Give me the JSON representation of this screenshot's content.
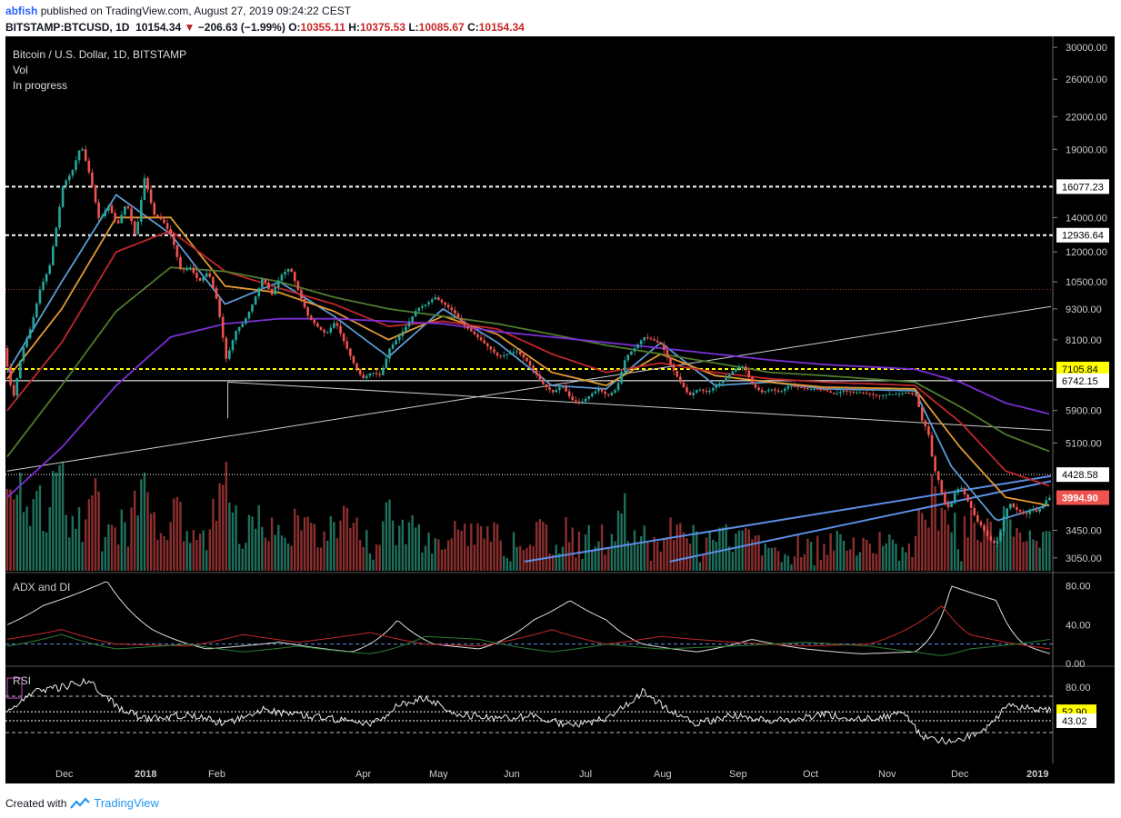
{
  "header": {
    "publisher": "abfish",
    "published_text": "published on TradingView.com, August 27, 2019 09:24:22 CEST",
    "symbol": "BITSTAMP:BTCUSD, 1D",
    "last": "10154.34",
    "change": "−206.63 (−1.99%)",
    "o_label": "O:",
    "o": "10355.11",
    "h_label": "H:",
    "h": "10375.53",
    "l_label": "L:",
    "l": "10085.67",
    "c_label": "C:",
    "c": "10154.34"
  },
  "legend": [
    "Bitcoin / U.S. Dollar, 1D, BITSTAMP",
    "Vol",
    "In progress"
  ],
  "colors": {
    "up": "#26a69a",
    "down": "#ef5350",
    "vol_up": "#1f6f5c",
    "vol_down": "#8b2e2e",
    "ma_blue": "#5b9bd5",
    "ma_orange": "#e39a32",
    "ma_red": "#c0282c",
    "ma_green": "#4f7c2d",
    "ma_purple": "#7b2fd6",
    "yellow": "#ffff00"
  },
  "footer": {
    "created_with": "Created with",
    "brand": "TradingView"
  },
  "chart_data": {
    "type": "candlestick",
    "title": "Bitcoin / U.S. Dollar, 1D, BITSTAMP",
    "y_scale": "log",
    "y_ticks": [
      "30000.00",
      "26000.00",
      "22000.00",
      "19000.00",
      "16077.23",
      "14000.00",
      "12936.64",
      "12000.00",
      "10500.00",
      "9300.00",
      "8100.00",
      "7105.84",
      "6742.15",
      "5900.00",
      "5100.00",
      "4428.58",
      "3994.90",
      "3450.00",
      "3050.00"
    ],
    "price_labels": [
      {
        "value": 16077.23,
        "text": "16077.23",
        "style": "white"
      },
      {
        "value": 12936.64,
        "text": "12936.64",
        "style": "white"
      },
      {
        "value": 7105.84,
        "text": "7105.84",
        "style": "yellow"
      },
      {
        "value": 6742.15,
        "text": "6742.15",
        "style": "white"
      },
      {
        "value": 4428.58,
        "text": "4428.58",
        "style": "white"
      },
      {
        "value": 3994.9,
        "text": "3994.90",
        "style": "red"
      }
    ],
    "horizontal_levels": [
      16077.23,
      12936.64,
      10150,
      7105.84,
      6742.15,
      4428.58
    ],
    "x_labels": [
      "Dec",
      "2018",
      "Feb",
      "Apr",
      "May",
      "Jun",
      "Jul",
      "Aug",
      "Sep",
      "Oct",
      "Nov",
      "Dec",
      "2019"
    ],
    "price_path": [
      [
        0,
        7800
      ],
      [
        10,
        6200
      ],
      [
        20,
        7700
      ],
      [
        30,
        8600
      ],
      [
        40,
        10200
      ],
      [
        50,
        11200
      ],
      [
        58,
        13500
      ],
      [
        65,
        16200
      ],
      [
        75,
        17200
      ],
      [
        85,
        19400
      ],
      [
        95,
        16800
      ],
      [
        105,
        13800
      ],
      [
        115,
        14800
      ],
      [
        125,
        13500
      ],
      [
        135,
        15000
      ],
      [
        145,
        12800
      ],
      [
        155,
        16800
      ],
      [
        165,
        14200
      ],
      [
        175,
        13800
      ],
      [
        185,
        12800
      ],
      [
        195,
        11000
      ],
      [
        205,
        11200
      ],
      [
        215,
        10500
      ],
      [
        225,
        11000
      ],
      [
        235,
        9600
      ],
      [
        245,
        7400
      ],
      [
        255,
        8400
      ],
      [
        265,
        8800
      ],
      [
        275,
        9600
      ],
      [
        285,
        10700
      ],
      [
        295,
        9900
      ],
      [
        305,
        10800
      ],
      [
        315,
        11200
      ],
      [
        325,
        10000
      ],
      [
        335,
        9000
      ],
      [
        345,
        8600
      ],
      [
        355,
        8300
      ],
      [
        365,
        8800
      ],
      [
        375,
        8000
      ],
      [
        385,
        7300
      ],
      [
        395,
        6800
      ],
      [
        405,
        7000
      ],
      [
        415,
        6900
      ],
      [
        425,
        7800
      ],
      [
        435,
        8200
      ],
      [
        445,
        8700
      ],
      [
        455,
        9300
      ],
      [
        465,
        9500
      ],
      [
        475,
        9800
      ],
      [
        485,
        9500
      ],
      [
        495,
        9200
      ],
      [
        505,
        8700
      ],
      [
        515,
        8400
      ],
      [
        525,
        8100
      ],
      [
        535,
        7800
      ],
      [
        545,
        7500
      ],
      [
        555,
        7600
      ],
      [
        565,
        7700
      ],
      [
        575,
        7400
      ],
      [
        585,
        7000
      ],
      [
        595,
        6600
      ],
      [
        605,
        6400
      ],
      [
        615,
        6600
      ],
      [
        625,
        6200
      ],
      [
        635,
        6100
      ],
      [
        645,
        6300
      ],
      [
        655,
        6500
      ],
      [
        665,
        6300
      ],
      [
        675,
        6500
      ],
      [
        685,
        7500
      ],
      [
        695,
        7800
      ],
      [
        705,
        8200
      ],
      [
        715,
        8100
      ],
      [
        725,
        7900
      ],
      [
        735,
        7200
      ],
      [
        745,
        6700
      ],
      [
        755,
        6300
      ],
      [
        765,
        6500
      ],
      [
        775,
        6400
      ],
      [
        785,
        6600
      ],
      [
        795,
        6800
      ],
      [
        805,
        7100
      ],
      [
        815,
        7200
      ],
      [
        825,
        6600
      ],
      [
        835,
        6400
      ],
      [
        845,
        6500
      ],
      [
        855,
        6400
      ],
      [
        865,
        6600
      ],
      [
        875,
        6550
      ],
      [
        885,
        6500
      ],
      [
        895,
        6500
      ],
      [
        905,
        6450
      ],
      [
        915,
        6350
      ],
      [
        925,
        6450
      ],
      [
        935,
        6400
      ],
      [
        945,
        6400
      ],
      [
        955,
        6350
      ],
      [
        965,
        6300
      ],
      [
        975,
        6350
      ],
      [
        985,
        6350
      ],
      [
        995,
        6400
      ],
      [
        1005,
        6300
      ],
      [
        1012,
        5600
      ],
      [
        1018,
        5400
      ],
      [
        1024,
        4600
      ],
      [
        1030,
        4300
      ],
      [
        1036,
        3900
      ],
      [
        1042,
        3800
      ],
      [
        1048,
        4100
      ],
      [
        1054,
        4200
      ],
      [
        1060,
        4000
      ],
      [
        1066,
        3800
      ],
      [
        1072,
        3600
      ],
      [
        1078,
        3500
      ],
      [
        1084,
        3350
      ],
      [
        1090,
        3250
      ],
      [
        1096,
        3300
      ],
      [
        1102,
        3700
      ],
      [
        1108,
        3900
      ],
      [
        1114,
        3800
      ],
      [
        1120,
        3750
      ],
      [
        1126,
        3700
      ],
      [
        1132,
        3800
      ],
      [
        1138,
        3750
      ],
      [
        1144,
        3850
      ],
      [
        1150,
        3990
      ]
    ],
    "moving_averages": [
      {
        "color": "ma_blue",
        "points": [
          [
            0,
            7000
          ],
          [
            60,
            10500
          ],
          [
            120,
            15500
          ],
          [
            180,
            13000
          ],
          [
            240,
            9500
          ],
          [
            300,
            10500
          ],
          [
            360,
            9000
          ],
          [
            420,
            7500
          ],
          [
            480,
            9300
          ],
          [
            540,
            8000
          ],
          [
            600,
            6600
          ],
          [
            660,
            6500
          ],
          [
            720,
            8000
          ],
          [
            780,
            6600
          ],
          [
            840,
            6700
          ],
          [
            900,
            6500
          ],
          [
            1000,
            6450
          ],
          [
            1040,
            4600
          ],
          [
            1090,
            3600
          ],
          [
            1150,
            3880
          ]
        ]
      },
      {
        "color": "ma_orange",
        "points": [
          [
            0,
            6800
          ],
          [
            60,
            9300
          ],
          [
            120,
            14000
          ],
          [
            180,
            14000
          ],
          [
            240,
            10300
          ],
          [
            300,
            10000
          ],
          [
            360,
            9200
          ],
          [
            420,
            8100
          ],
          [
            480,
            9000
          ],
          [
            540,
            8300
          ],
          [
            600,
            7000
          ],
          [
            660,
            6600
          ],
          [
            720,
            7600
          ],
          [
            780,
            6900
          ],
          [
            840,
            6700
          ],
          [
            900,
            6550
          ],
          [
            1000,
            6500
          ],
          [
            1050,
            5000
          ],
          [
            1100,
            4000
          ],
          [
            1150,
            3850
          ]
        ]
      },
      {
        "color": "ma_red",
        "points": [
          [
            0,
            5900
          ],
          [
            60,
            8000
          ],
          [
            120,
            12000
          ],
          [
            180,
            13200
          ],
          [
            240,
            11000
          ],
          [
            300,
            10200
          ],
          [
            360,
            9500
          ],
          [
            420,
            8600
          ],
          [
            480,
            8800
          ],
          [
            540,
            8500
          ],
          [
            600,
            7600
          ],
          [
            660,
            7000
          ],
          [
            720,
            7300
          ],
          [
            780,
            7000
          ],
          [
            840,
            6800
          ],
          [
            900,
            6700
          ],
          [
            1000,
            6600
          ],
          [
            1050,
            5600
          ],
          [
            1100,
            4500
          ],
          [
            1150,
            4200
          ]
        ]
      },
      {
        "color": "ma_green",
        "points": [
          [
            0,
            4800
          ],
          [
            60,
            6600
          ],
          [
            120,
            9200
          ],
          [
            180,
            11200
          ],
          [
            240,
            11000
          ],
          [
            300,
            10500
          ],
          [
            360,
            9800
          ],
          [
            420,
            9300
          ],
          [
            480,
            9000
          ],
          [
            540,
            8700
          ],
          [
            600,
            8300
          ],
          [
            660,
            7900
          ],
          [
            720,
            7600
          ],
          [
            780,
            7300
          ],
          [
            840,
            7000
          ],
          [
            900,
            6900
          ],
          [
            1000,
            6700
          ],
          [
            1050,
            6000
          ],
          [
            1100,
            5300
          ],
          [
            1150,
            4900
          ]
        ]
      },
      {
        "color": "ma_purple",
        "points": [
          [
            0,
            4000
          ],
          [
            60,
            5000
          ],
          [
            120,
            6600
          ],
          [
            180,
            8200
          ],
          [
            240,
            8700
          ],
          [
            300,
            8900
          ],
          [
            360,
            8900
          ],
          [
            420,
            8800
          ],
          [
            480,
            8700
          ],
          [
            540,
            8400
          ],
          [
            600,
            8200
          ],
          [
            660,
            8000
          ],
          [
            720,
            7800
          ],
          [
            780,
            7600
          ],
          [
            840,
            7400
          ],
          [
            900,
            7250
          ],
          [
            1000,
            7100
          ],
          [
            1050,
            6700
          ],
          [
            1100,
            6100
          ],
          [
            1150,
            5800
          ]
        ]
      }
    ],
    "trendlines": [
      {
        "color": "#cccccc",
        "points": [
          [
            0,
            4500
          ],
          [
            1150,
            9400
          ]
        ]
      },
      {
        "color": "#cccccc",
        "points": [
          [
            243,
            6700
          ],
          [
            1150,
            5400
          ]
        ]
      },
      {
        "color": "#5b8ee6",
        "points": [
          [
            570,
            3000
          ],
          [
            1150,
            4400
          ]
        ]
      },
      {
        "color": "#5b8ee6",
        "points": [
          [
            730,
            3000
          ],
          [
            1150,
            4300
          ]
        ]
      }
    ],
    "panels": [
      {
        "name": "ADX and DI",
        "ticks": [
          "80.00",
          "40.00",
          "0.00"
        ],
        "range": [
          0,
          90
        ],
        "dashed_level": 20
      },
      {
        "name": "RSI",
        "ticks": [
          "80.00"
        ],
        "range": [
          0,
          100
        ],
        "labels": [
          {
            "text": "52.90",
            "value": 52.9,
            "style": "yellow"
          },
          {
            "text": "43.02",
            "value": 43.02,
            "style": "white"
          }
        ]
      }
    ]
  }
}
